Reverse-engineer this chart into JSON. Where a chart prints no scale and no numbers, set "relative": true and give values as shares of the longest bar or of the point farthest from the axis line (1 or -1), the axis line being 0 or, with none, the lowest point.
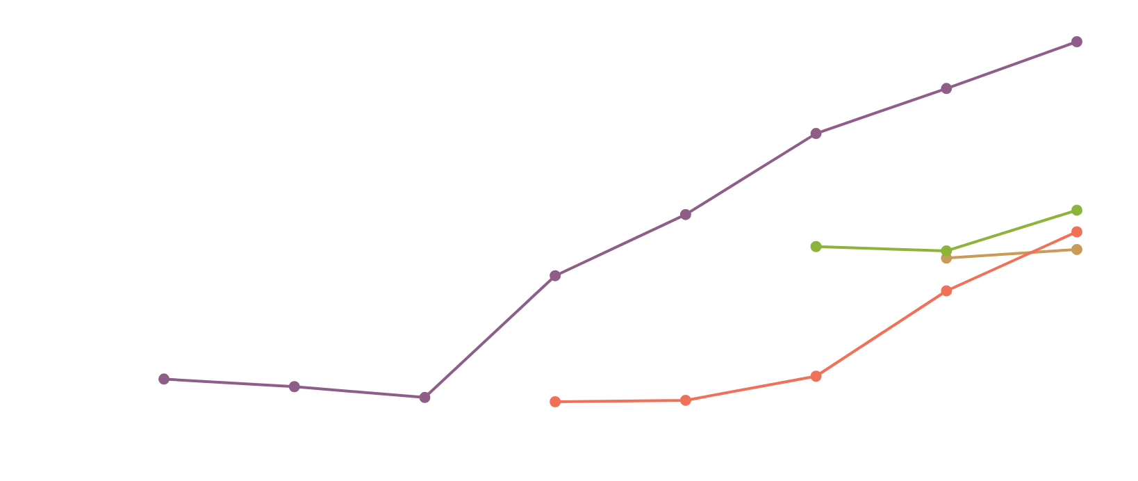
{
  "chart_data": {
    "type": "line",
    "relative": true,
    "marker": "circle",
    "categories": [
      null,
      null,
      null,
      null,
      null,
      null,
      null,
      null
    ],
    "series": [
      {
        "color": "#8f5e88",
        "values": [
          0.063,
          0.042,
          0.012,
          0.35,
          0.52,
          0.745,
          0.87,
          1
        ]
      },
      {
        "color": "#f07157",
        "values": [
          null,
          null,
          null,
          0,
          0.004,
          0.071,
          0.308,
          0.472
        ]
      },
      {
        "color": "#8db33a",
        "values": [
          null,
          null,
          null,
          null,
          null,
          0.431,
          0.419,
          0.532
        ]
      },
      {
        "color": "#c99a5a",
        "values": [
          null,
          null,
          null,
          null,
          null,
          null,
          0.399,
          0.423
        ]
      }
    ]
  }
}
